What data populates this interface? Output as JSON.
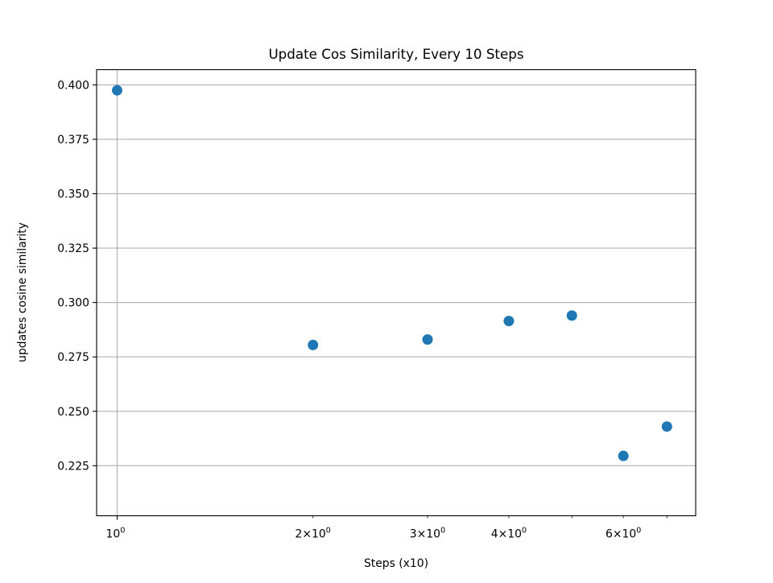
{
  "chart_data": {
    "type": "scatter",
    "title": "Update Cos Similarity, Every 10 Steps",
    "xlabel": "Steps (x10)",
    "ylabel": "updates cosine similarity",
    "x_scale": "log",
    "xlim": [
      0.93,
      7.75
    ],
    "ylim": [
      0.202,
      0.407
    ],
    "grid": true,
    "marker_color": "#1f77b4",
    "x_major_ticks": [
      {
        "value": 1,
        "base": "10",
        "exp": "0"
      }
    ],
    "x_minor_ticks": [
      {
        "value": 2,
        "mantissa": "2",
        "base": "10",
        "exp": "0"
      },
      {
        "value": 3,
        "mantissa": "3",
        "base": "10",
        "exp": "0"
      },
      {
        "value": 4,
        "mantissa": "4",
        "base": "10",
        "exp": "0"
      },
      {
        "value": 6,
        "mantissa": "6",
        "base": "10",
        "exp": "0"
      }
    ],
    "x_minor_unlabeled": [
      5,
      7
    ],
    "y_ticks": [
      {
        "value": 0.225,
        "label": "0.225"
      },
      {
        "value": 0.25,
        "label": "0.250"
      },
      {
        "value": 0.275,
        "label": "0.275"
      },
      {
        "value": 0.3,
        "label": "0.300"
      },
      {
        "value": 0.325,
        "label": "0.325"
      },
      {
        "value": 0.35,
        "label": "0.350"
      },
      {
        "value": 0.375,
        "label": "0.375"
      },
      {
        "value": 0.4,
        "label": "0.400"
      }
    ],
    "points": [
      {
        "x": 1,
        "y": 0.3975
      },
      {
        "x": 2,
        "y": 0.2805
      },
      {
        "x": 3,
        "y": 0.283
      },
      {
        "x": 4,
        "y": 0.2915
      },
      {
        "x": 5,
        "y": 0.294
      },
      {
        "x": 6,
        "y": 0.2295
      },
      {
        "x": 7,
        "y": 0.243
      }
    ]
  }
}
